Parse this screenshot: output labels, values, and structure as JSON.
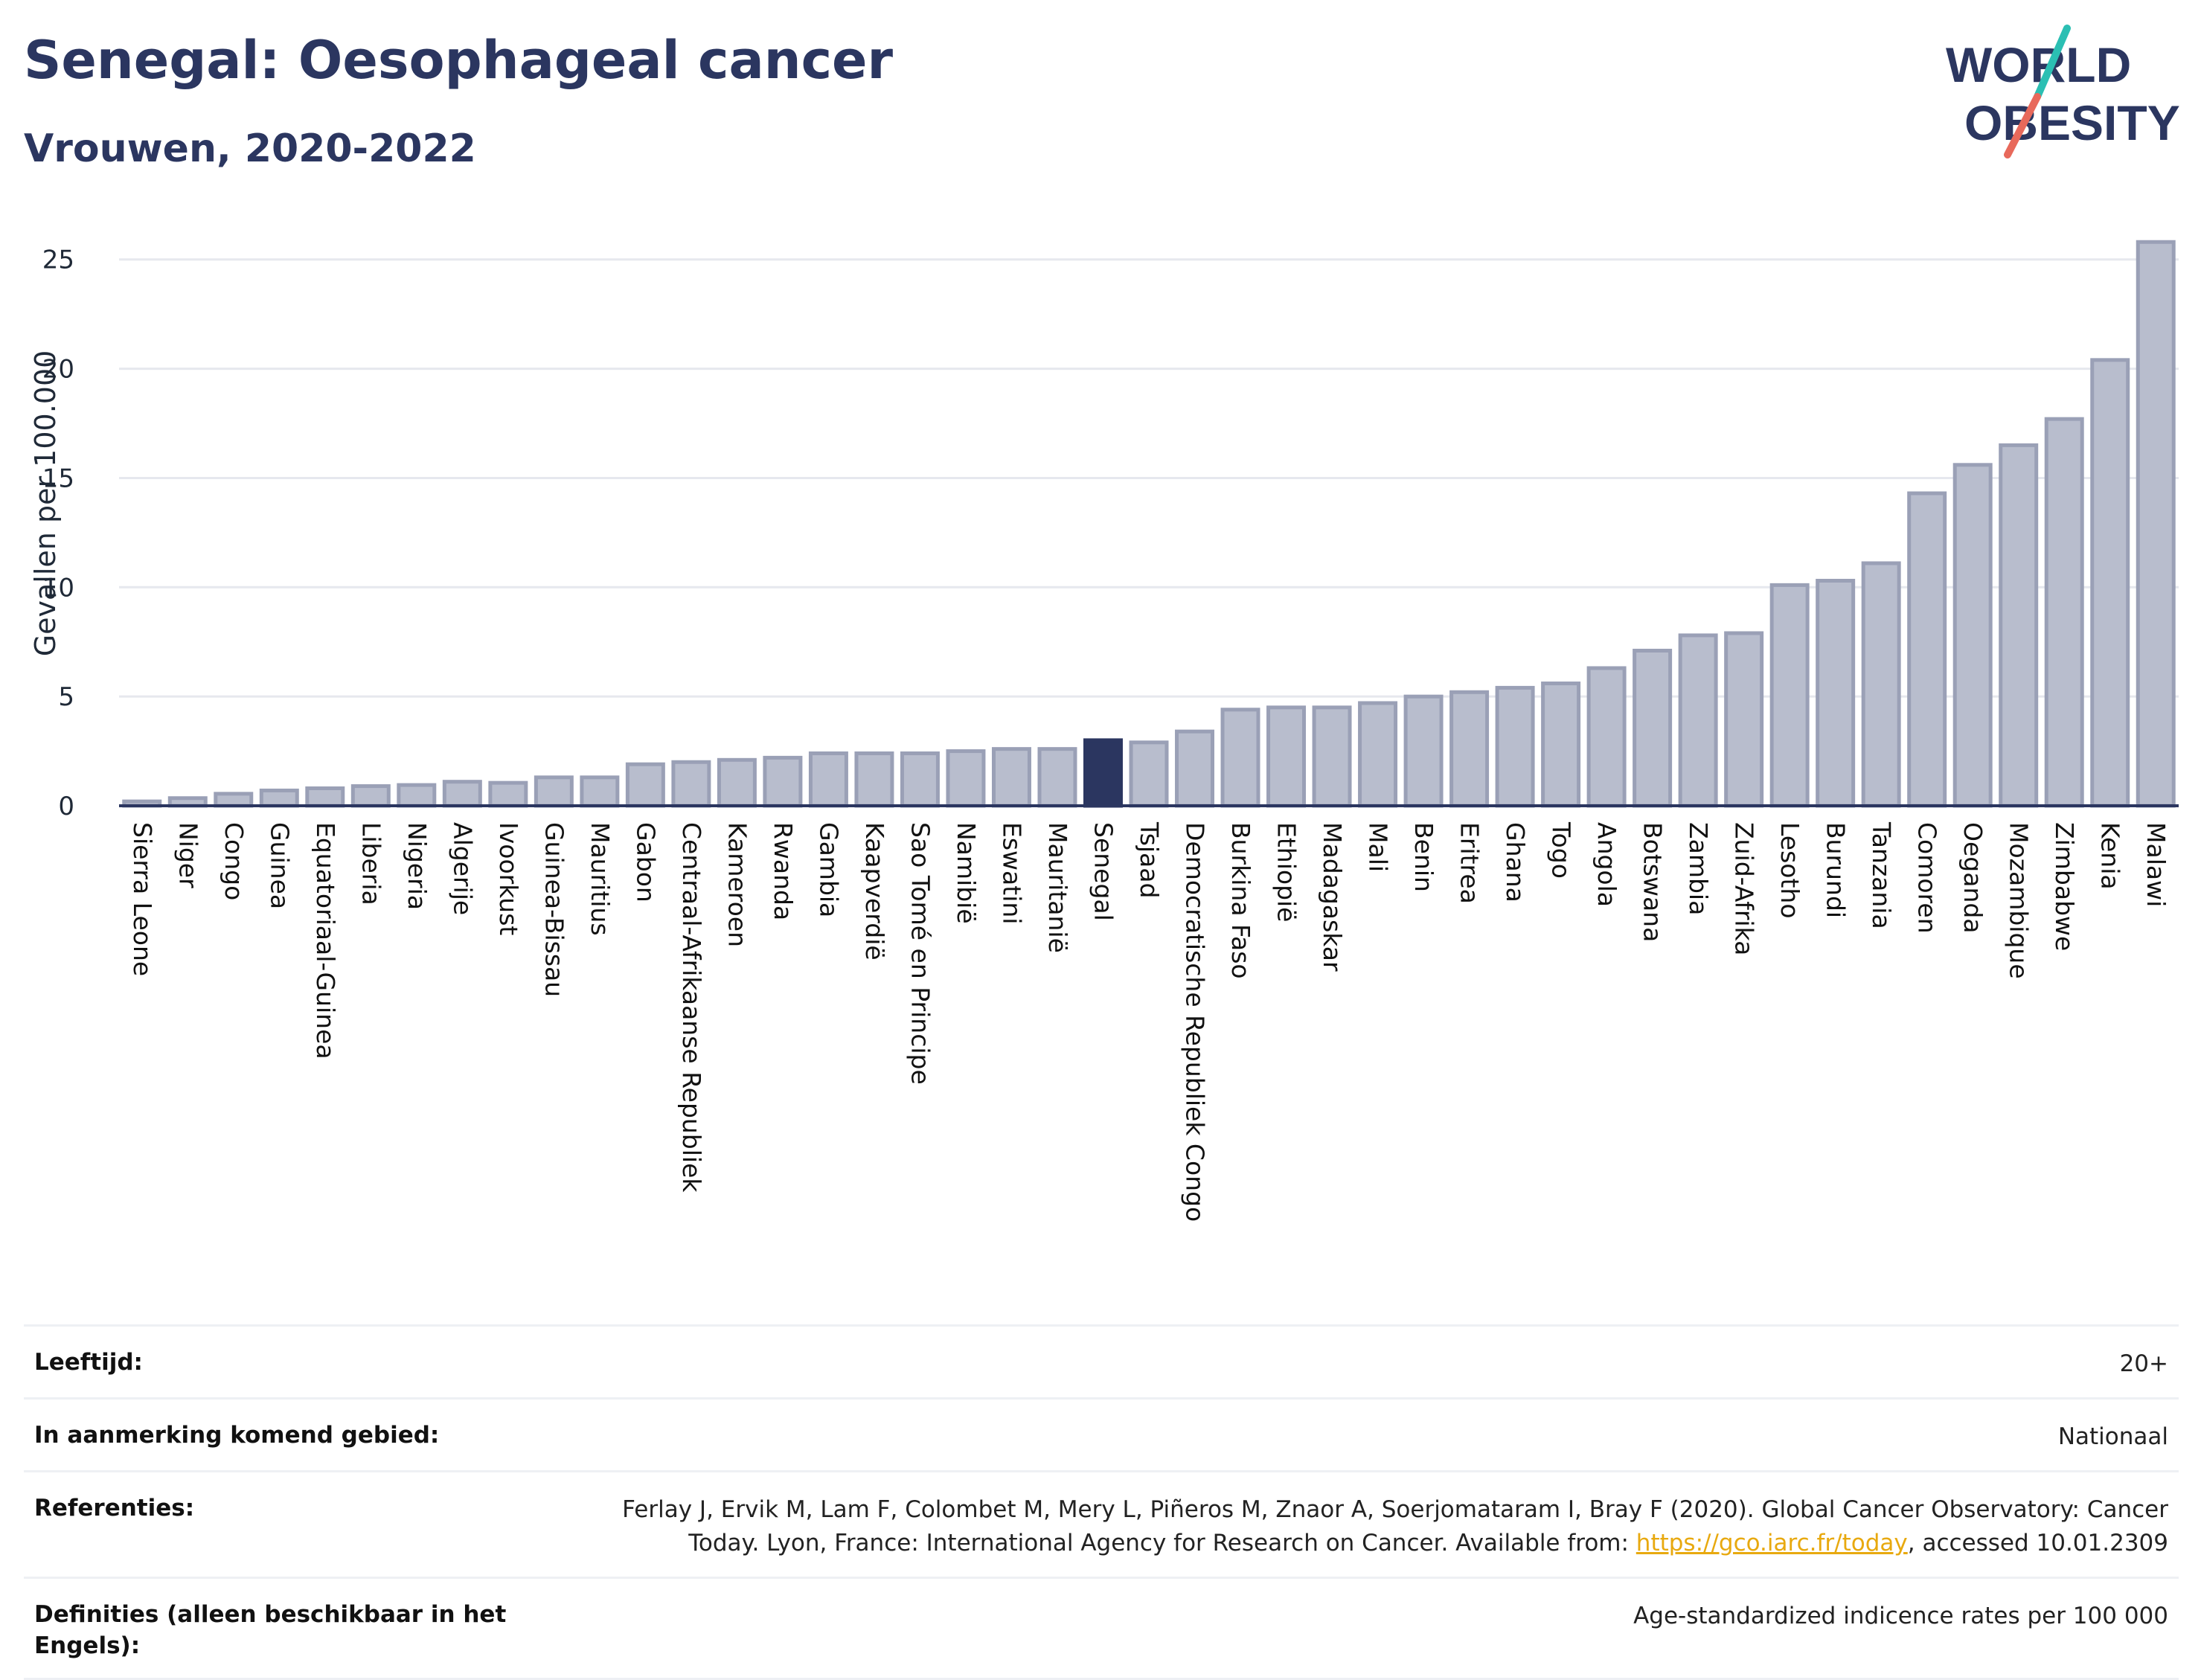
{
  "header": {
    "title": "Senegal: Oesophageal cancer",
    "subtitle": "Vrouwen, 2020-2022"
  },
  "logo": {
    "line1": "WORLD",
    "line2": "OBESITY",
    "accent_teal": "#2bbfb3",
    "accent_red": "#e8695b",
    "text_color": "#2b3660"
  },
  "colors": {
    "bar_fill": "#b8bdcd",
    "bar_stroke": "#9aa0b6",
    "highlight": "#2b3660",
    "grid": "#e6e8ee",
    "axis": "#2b3660"
  },
  "chart_data": {
    "type": "bar",
    "ylabel": "Gevallen per 100.000",
    "xlabel": "",
    "ylim": [
      0,
      27
    ],
    "yticks": [
      0,
      5,
      10,
      15,
      20,
      25
    ],
    "highlight": "Senegal",
    "grid": true,
    "categories": [
      "Sierra Leone",
      "Niger",
      "Congo",
      "Guinea",
      "Equatoriaal-Guinea",
      "Liberia",
      "Nigeria",
      "Algerije",
      "Ivoorkust",
      "Guinea-Bissau",
      "Mauritius",
      "Gabon",
      "Centraal-Afrikaanse Republiek",
      "Kameroen",
      "Rwanda",
      "Gambia",
      "Kaapverdië",
      "Sao Tomé en Principe",
      "Namibië",
      "Eswatini",
      "Mauritanië",
      "Senegal",
      "Tsjaad",
      "Democratische Republiek Congo",
      "Burkina Faso",
      "Ethiopië",
      "Madagaskar",
      "Mali",
      "Benin",
      "Eritrea",
      "Ghana",
      "Togo",
      "Angola",
      "Botswana",
      "Zambia",
      "Zuid-Afrika",
      "Lesotho",
      "Burundi",
      "Tanzania",
      "Comoren",
      "Oeganda",
      "Mozambique",
      "Zimbabwe",
      "Kenia",
      "Malawi"
    ],
    "values": [
      0.2,
      0.35,
      0.55,
      0.7,
      0.8,
      0.9,
      0.95,
      1.1,
      1.05,
      1.3,
      1.3,
      1.9,
      2.0,
      2.1,
      2.2,
      2.4,
      2.4,
      2.4,
      2.5,
      2.6,
      2.6,
      3.0,
      2.9,
      3.4,
      4.4,
      4.5,
      4.5,
      4.7,
      5.0,
      5.2,
      5.4,
      5.6,
      6.3,
      7.1,
      7.8,
      7.9,
      10.1,
      10.3,
      11.1,
      14.3,
      15.6,
      16.5,
      17.7,
      20.4,
      25.8
    ]
  },
  "meta": {
    "age_label": "Leeftijd:",
    "age_value": "20+",
    "area_label": "In aanmerking komend gebied:",
    "area_value": "Nationaal",
    "ref_label": "Referenties:",
    "ref_text_1": "Ferlay J, Ervik M, Lam F, Colombet M, Mery L, Piñeros M, Znaor A, Soerjomataram I, Bray F (2020). Global Cancer Observatory: Cancer Today. Lyon, France: International Agency for Research on Cancer. Available from: ",
    "ref_link": "https://gco.iarc.fr/today",
    "ref_text_2": ", accessed 10.01.2309",
    "def_label": "Definities (alleen beschikbaar in het Engels):",
    "def_value": "Age-standardized indicence rates per 100 000"
  }
}
